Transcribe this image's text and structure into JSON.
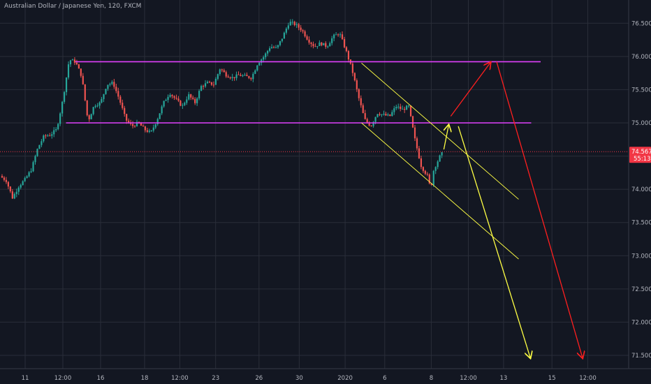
{
  "header": {
    "symbol_title": "Australian Dollar / Japanese Yen, 120, FXCM"
  },
  "colors": {
    "background": "#131722",
    "grid": "#2a2e39",
    "axis_text": "#b2b5be",
    "candle_up": "#26a69a",
    "candle_down": "#ef5350",
    "support_resistance": "#e040fb",
    "channel": "#ffff44",
    "arrow_yellow": "#ffff44",
    "arrow_red": "#ff1f1f",
    "last_price": "#f23645"
  },
  "chart_data": {
    "type": "candlestick",
    "symbol": "AUDJPY",
    "interval": "120",
    "source": "FXCM",
    "y_axis": {
      "side": "right",
      "range": [
        71.3,
        76.85
      ],
      "ticks": [
        "76.500",
        "76.000",
        "75.500",
        "75.000",
        "74.500",
        "74.000",
        "73.500",
        "73.000",
        "72.500",
        "72.000",
        "71.500"
      ]
    },
    "x_axis": {
      "range": [
        0,
        100
      ],
      "ticks": [
        {
          "label": "11",
          "x": 4
        },
        {
          "label": "12:00",
          "x": 10
        },
        {
          "label": "16",
          "x": 16
        },
        {
          "label": "18",
          "x": 23
        },
        {
          "label": "12:00",
          "x": 28.6
        },
        {
          "label": "23",
          "x": 34.3
        },
        {
          "label": "26",
          "x": 41.2
        },
        {
          "label": "30",
          "x": 47.6
        },
        {
          "label": "2020",
          "x": 54.9
        },
        {
          "label": "6",
          "x": 61.2
        },
        {
          "label": "8",
          "x": 68.6
        },
        {
          "label": "12:00",
          "x": 74.5
        },
        {
          "label": "13",
          "x": 80.1
        },
        {
          "label": "15",
          "x": 87.8
        },
        {
          "label": "12:00",
          "x": 93.5
        }
      ]
    },
    "last_price": {
      "value_label": "74.567",
      "countdown": "55:13",
      "value": 74.567
    },
    "price_path": [
      [
        0.0,
        74.2
      ],
      [
        1.0,
        74.13
      ],
      [
        2.0,
        73.87
      ],
      [
        3.0,
        74.05
      ],
      [
        4.0,
        74.15
      ],
      [
        5.0,
        74.3
      ],
      [
        6.0,
        74.62
      ],
      [
        7.0,
        74.8
      ],
      [
        8.0,
        74.82
      ],
      [
        9.0,
        74.9
      ],
      [
        10.0,
        75.35
      ],
      [
        11.0,
        75.95
      ],
      [
        12.0,
        75.92
      ],
      [
        13.0,
        75.7
      ],
      [
        14.0,
        75.02
      ],
      [
        15.0,
        75.27
      ],
      [
        16.0,
        75.3
      ],
      [
        17.0,
        75.58
      ],
      [
        18.0,
        75.6
      ],
      [
        19.0,
        75.35
      ],
      [
        20.0,
        75.05
      ],
      [
        21.0,
        74.95
      ],
      [
        22.0,
        75.0
      ],
      [
        23.0,
        74.9
      ],
      [
        24.0,
        74.85
      ],
      [
        25.0,
        75.05
      ],
      [
        26.0,
        75.3
      ],
      [
        27.0,
        75.45
      ],
      [
        28.0,
        75.35
      ],
      [
        29.0,
        75.25
      ],
      [
        30.0,
        75.42
      ],
      [
        31.0,
        75.3
      ],
      [
        32.0,
        75.55
      ],
      [
        33.0,
        75.6
      ],
      [
        34.0,
        75.58
      ],
      [
        35.0,
        75.82
      ],
      [
        36.0,
        75.72
      ],
      [
        37.0,
        75.68
      ],
      [
        38.0,
        75.72
      ],
      [
        39.0,
        75.7
      ],
      [
        40.0,
        75.68
      ],
      [
        41.0,
        75.9
      ],
      [
        42.0,
        76.0
      ],
      [
        43.0,
        76.15
      ],
      [
        44.0,
        76.12
      ],
      [
        45.0,
        76.3
      ],
      [
        46.0,
        76.52
      ],
      [
        47.0,
        76.48
      ],
      [
        48.0,
        76.4
      ],
      [
        49.0,
        76.25
      ],
      [
        50.0,
        76.15
      ],
      [
        51.0,
        76.2
      ],
      [
        52.0,
        76.15
      ],
      [
        53.0,
        76.3
      ],
      [
        54.0,
        76.35
      ],
      [
        55.0,
        76.1
      ],
      [
        56.0,
        75.8
      ],
      [
        57.0,
        75.4
      ],
      [
        58.0,
        75.05
      ],
      [
        59.0,
        74.95
      ],
      [
        60.0,
        75.15
      ],
      [
        61.0,
        75.12
      ],
      [
        62.0,
        75.1
      ],
      [
        63.0,
        75.25
      ],
      [
        64.0,
        75.2
      ],
      [
        65.0,
        75.25
      ],
      [
        66.0,
        74.75
      ],
      [
        67.0,
        74.35
      ],
      [
        68.0,
        74.2
      ],
      [
        68.5,
        74.0
      ],
      [
        69.0,
        74.3
      ],
      [
        70.0,
        74.5
      ],
      [
        70.5,
        74.56
      ]
    ],
    "annotations": {
      "resistance": {
        "y": 75.92,
        "x_range": [
          12,
          86
        ]
      },
      "support": {
        "y": 75.0,
        "x_range": [
          10.5,
          84.5
        ]
      },
      "channel_upper": {
        "from": [
          57.5,
          75.9
        ],
        "to": [
          82.5,
          73.85
        ]
      },
      "channel_lower": {
        "from": [
          57.5,
          75.0
        ],
        "to": [
          82.5,
          72.95
        ]
      },
      "arrow_yellow_short": {
        "from": [
          70.6,
          74.6
        ],
        "to": [
          71.4,
          74.98
        ]
      },
      "arrow_yellow_long": {
        "from": [
          72.9,
          74.95
        ],
        "to": [
          84.4,
          71.45
        ]
      },
      "arrow_red_up": {
        "from": [
          71.7,
          75.1
        ],
        "to": [
          78.1,
          75.92
        ]
      },
      "arrow_red_down": {
        "from": [
          79.0,
          75.92
        ],
        "to": [
          92.7,
          71.45
        ]
      }
    }
  }
}
